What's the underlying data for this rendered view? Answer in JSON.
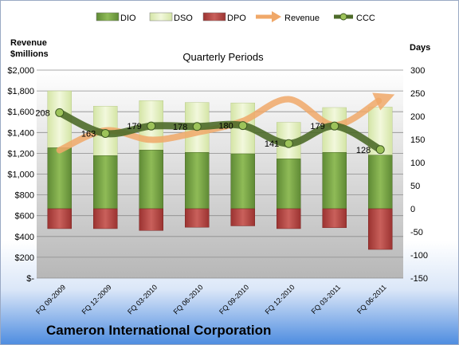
{
  "company": "Cameron International Corporation",
  "chart_data": {
    "type": "bar",
    "title": "Quarterly Periods",
    "left_axis_label": [
      "Revenue",
      "$millions"
    ],
    "right_axis_label": "Days",
    "left_ticks": [
      "$-",
      "$200",
      "$400",
      "$600",
      "$800",
      "$1,000",
      "$1,200",
      "$1,400",
      "$1,600",
      "$1,800",
      "$2,000"
    ],
    "right_ticks": [
      "-150",
      "-100",
      "-50",
      "0",
      "50",
      "100",
      "150",
      "200",
      "250",
      "300"
    ],
    "left_range": [
      0,
      2000
    ],
    "right_range": [
      -150,
      300
    ],
    "grid": true,
    "legend_position": "top",
    "categories": [
      "FQ 09-2009",
      "FQ 12-2009",
      "FQ 03-2010",
      "FQ 06-2010",
      "FQ 09-2010",
      "FQ 12-2010",
      "FQ 03-2011",
      "FQ 06-2011"
    ],
    "series": [
      {
        "name": "DIO",
        "axis": "days",
        "color": "#7aa34a",
        "values": [
          132,
          115,
          127,
          122,
          119,
          108,
          122,
          116
        ]
      },
      {
        "name": "DSO",
        "axis": "days",
        "color": "#e6f0c4",
        "values": [
          123,
          107,
          107,
          108,
          110,
          79,
          97,
          104
        ]
      },
      {
        "name": "DPO",
        "axis": "days",
        "color": "#c0504d",
        "values": [
          -43,
          -43,
          -47,
          -40,
          -37,
          -43,
          -41,
          -88
        ]
      },
      {
        "name": "Revenue",
        "axis": "revenue",
        "color": "#f0a869",
        "values": [
          1230,
          1420,
          1330,
          1400,
          1510,
          1720,
          1470,
          1720
        ]
      },
      {
        "name": "CCC",
        "axis": "days",
        "color": "#4e6b2a",
        "values": [
          208,
          163,
          179,
          178,
          180,
          141,
          179,
          128
        ]
      }
    ],
    "ccc_labels": [
      "208",
      "163",
      "179",
      "178",
      "180",
      "141",
      "179",
      "128"
    ]
  }
}
